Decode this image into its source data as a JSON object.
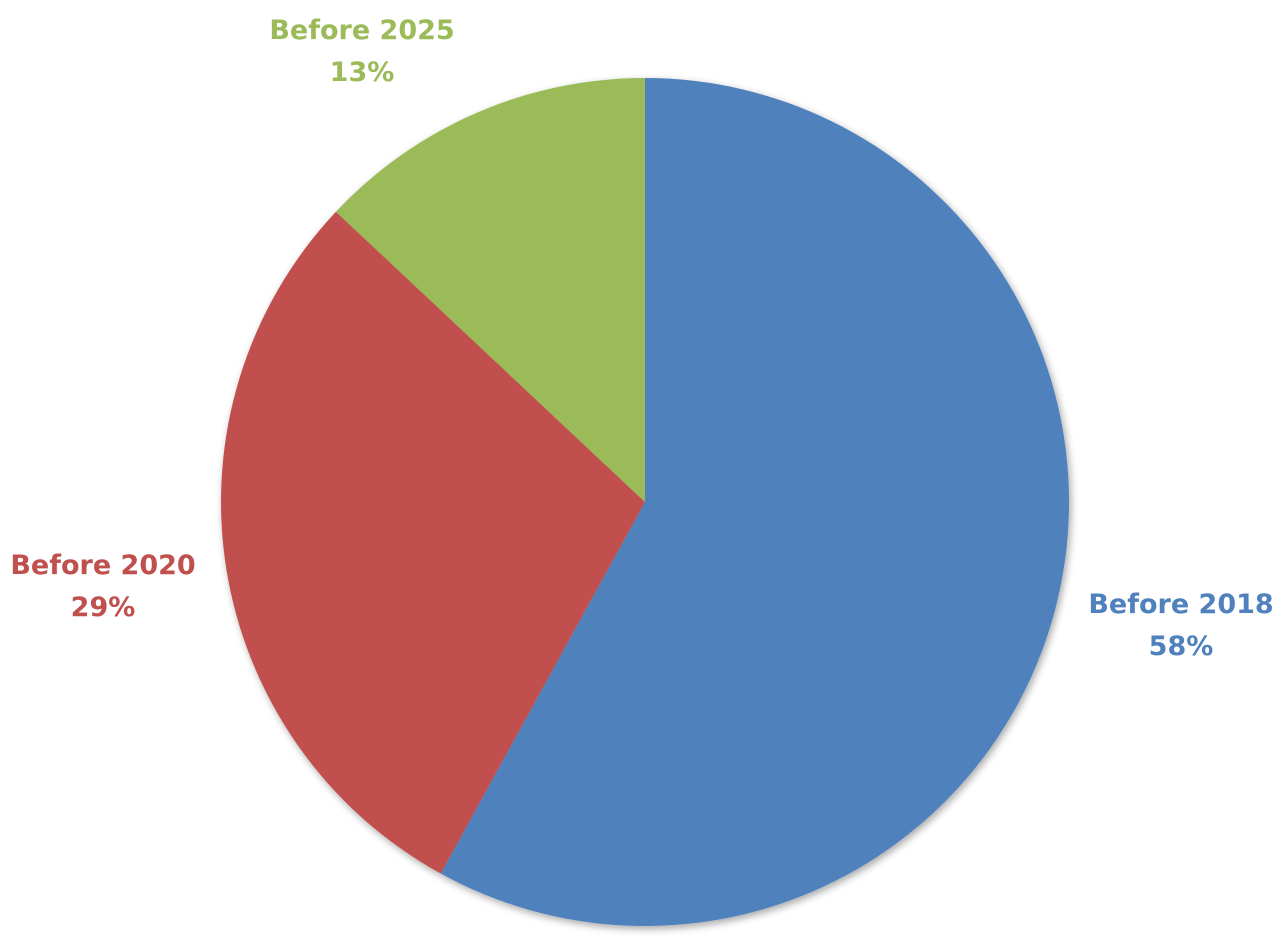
{
  "chart_data": {
    "type": "pie",
    "title": "",
    "start_angle_deg": 0,
    "direction": "clockwise",
    "slices": [
      {
        "label": "Before 2018",
        "value": 58,
        "value_label": "58%",
        "color": "#4F81BD"
      },
      {
        "label": "Before 2020",
        "value": 29,
        "value_label": "29%",
        "color": "#C0504D"
      },
      {
        "label": "Before 2025",
        "value": 13,
        "value_label": "13%",
        "color": "#9BBB59"
      }
    ],
    "legend": "none",
    "data_labels": "outside"
  }
}
